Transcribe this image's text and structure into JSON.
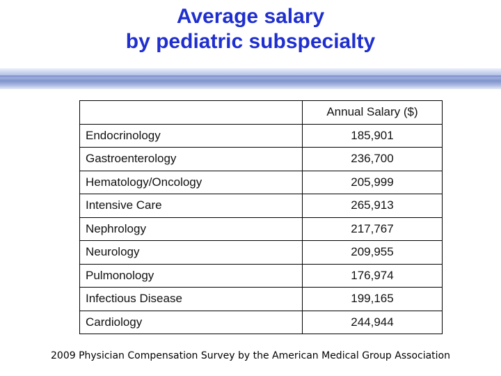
{
  "title": {
    "line1": "Average salary",
    "line2": "by pediatric subspecialty"
  },
  "table": {
    "header_blank": "",
    "header_salary": "Annual Salary ($)",
    "rows": [
      {
        "specialty": "Endocrinology",
        "salary": "185,901"
      },
      {
        "specialty": "Gastroenterology",
        "salary": "236,700"
      },
      {
        "specialty": "Hematology/Oncology",
        "salary": "205,999"
      },
      {
        "specialty": "Intensive Care",
        "salary": "265,913"
      },
      {
        "specialty": "Nephrology",
        "salary": "217,767"
      },
      {
        "specialty": "Neurology",
        "salary": "209,955"
      },
      {
        "specialty": "Pulmonology",
        "salary": "176,974"
      },
      {
        "specialty": "Infectious Disease",
        "salary": "199,165"
      },
      {
        "specialty": "Cardiology",
        "salary": "244,944"
      }
    ]
  },
  "footer": "2009 Physician Compensation Survey by the American Medical Group Association",
  "colors": {
    "title": "#1f2fcf",
    "band": "#9fb0dd"
  }
}
